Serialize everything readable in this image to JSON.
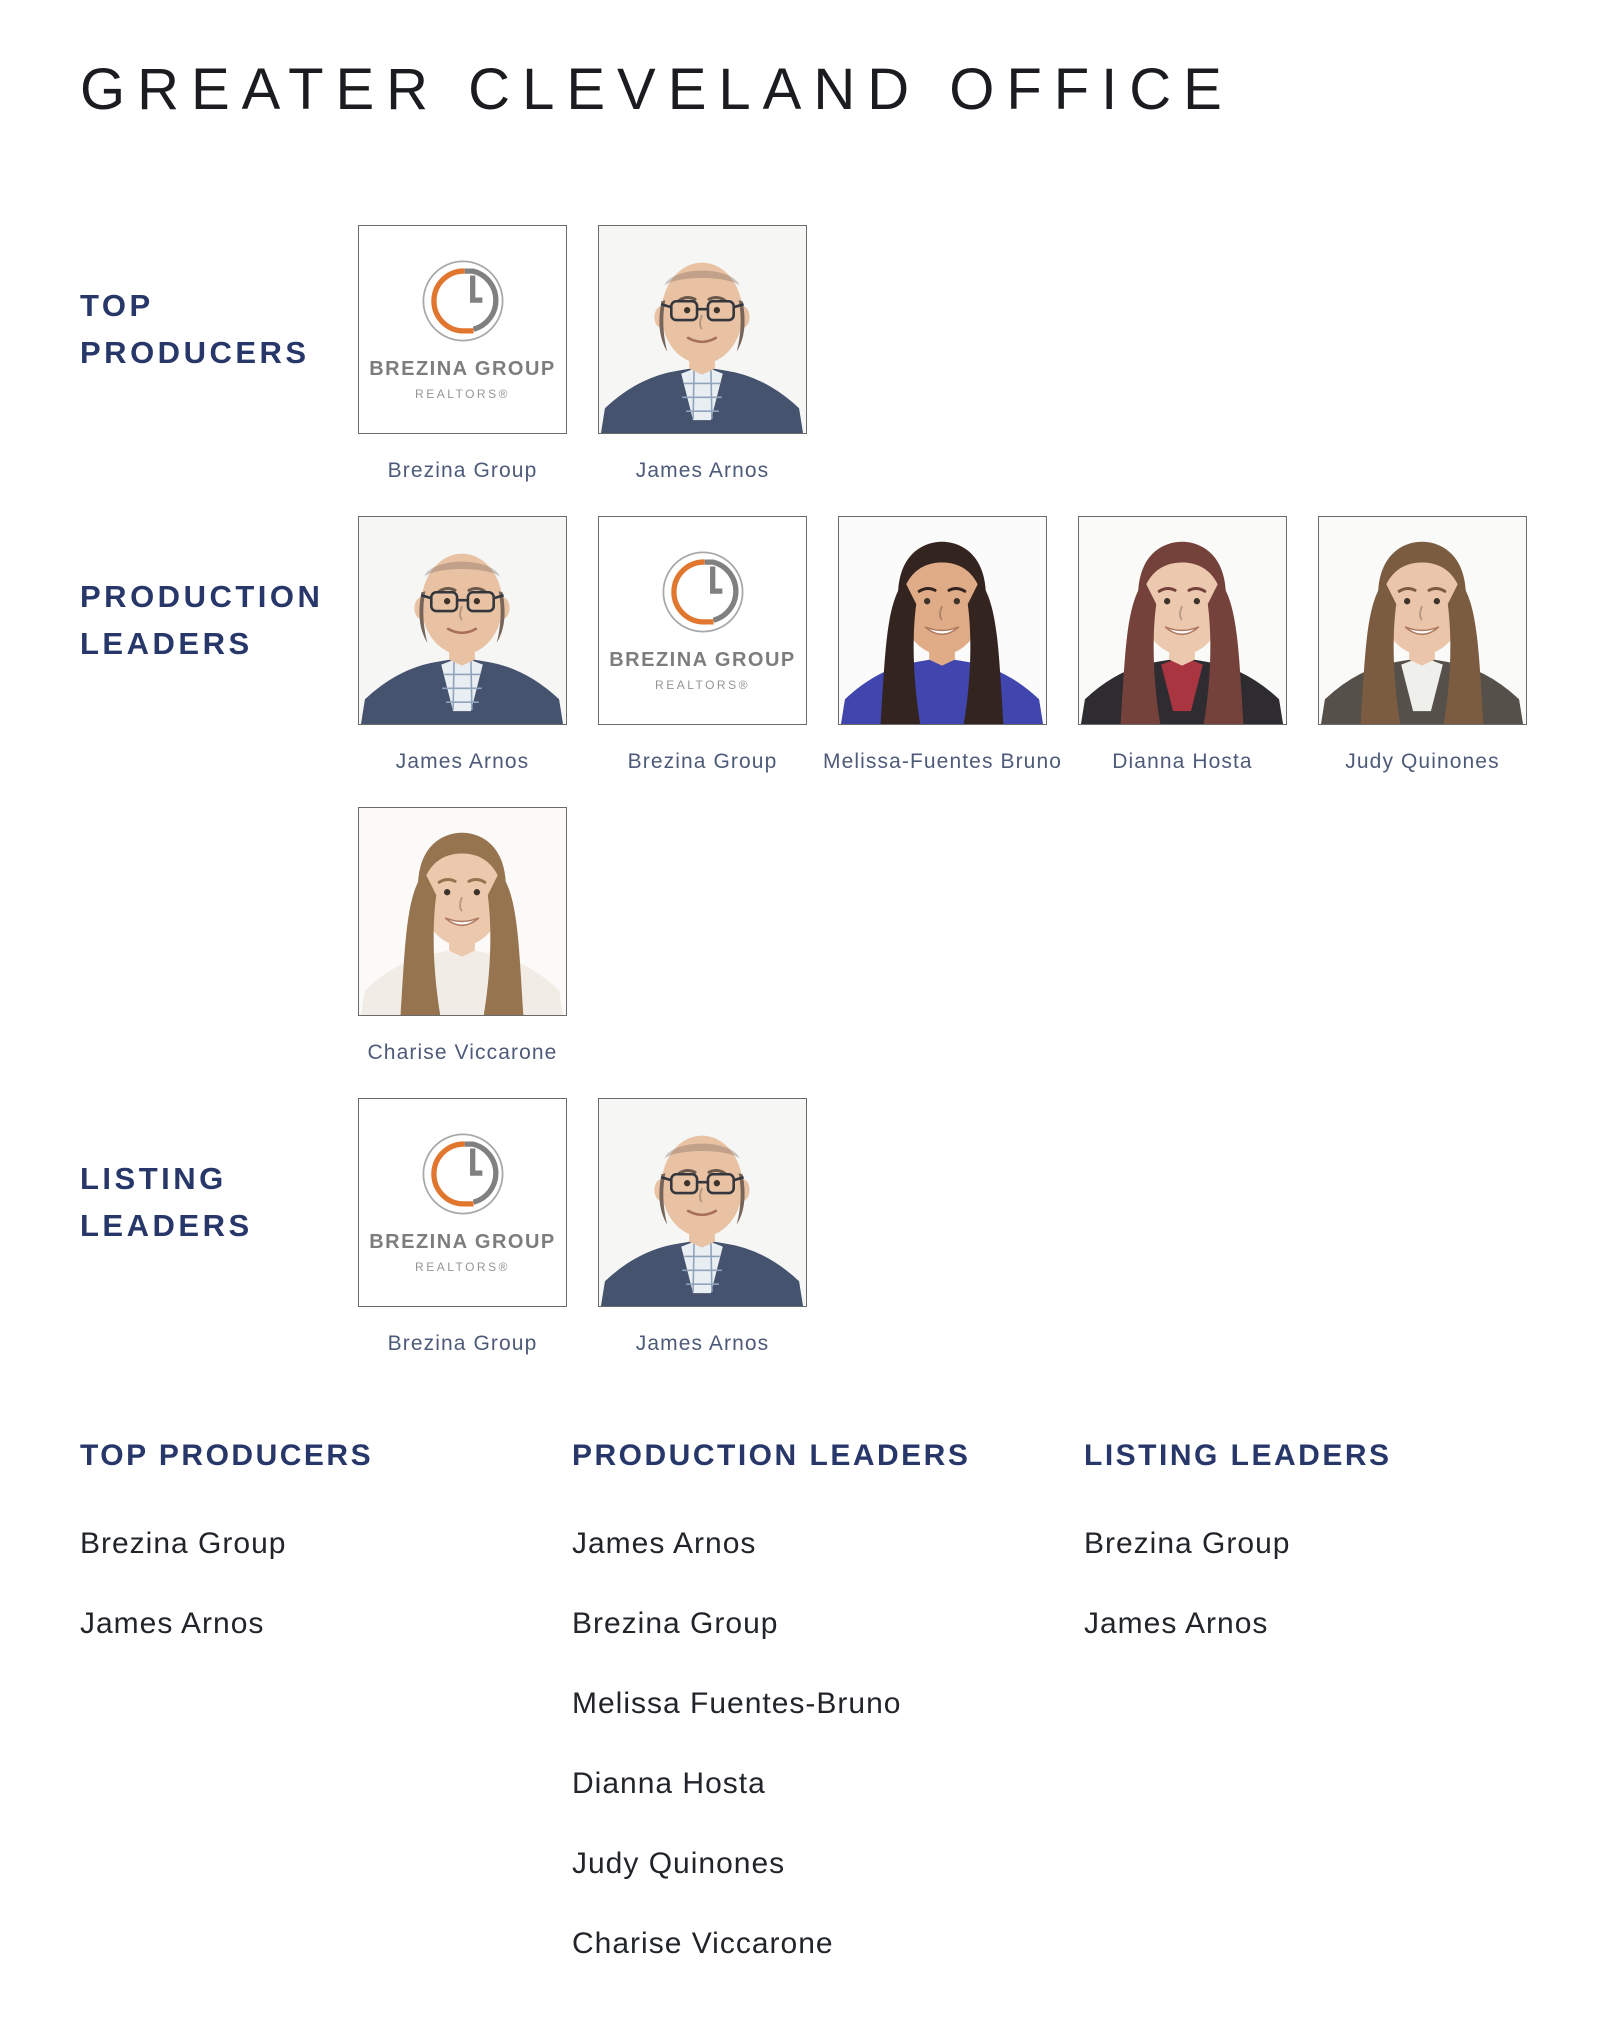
{
  "page": {
    "title": "GREATER CLEVELAND OFFICE"
  },
  "brand": {
    "logo_title": "BREZINA GROUP",
    "logo_subtitle": "REALTORS®"
  },
  "colors": {
    "navy": "#283769",
    "caption": "#4e5a79",
    "text": "#212529",
    "border": "#6a6a6a",
    "logo_orange": "#e1762f",
    "logo_gray": "#808080",
    "logo_text": "#7d7d7d",
    "logo_sub": "#949494",
    "logo_ring": "#a8a8a8"
  },
  "people": {
    "brezina-group": {
      "name": "Brezina Group",
      "type": "logo"
    },
    "james-arnos": {
      "name": "James Arnos",
      "type": "photo",
      "appearance": {
        "bg": "#f6f6f5",
        "skin": "#e9c2a3",
        "hair": "#77655a",
        "hair_style": "bald",
        "glasses": true,
        "smile": "soft",
        "top": "#45536e",
        "shirt": "#e9eef3",
        "shirt_check": "#8fa3bb"
      }
    },
    "melissa-fuentes-bruno": {
      "name": "Melissa Fuentes-Bruno",
      "type": "photo",
      "appearance": {
        "bg": "#fbfbfb",
        "skin": "#e0ab87",
        "hair": "#332420",
        "hair_style": "long",
        "glasses": false,
        "smile": "teeth",
        "top": "#4046ad"
      }
    },
    "dianna-hosta": {
      "name": "Dianna Hosta",
      "type": "photo",
      "appearance": {
        "bg": "#fafaf9",
        "skin": "#ecc9ae",
        "hair": "#74423a",
        "hair_style": "long",
        "glasses": false,
        "smile": "teeth",
        "top": "#2e2c31",
        "shirt": "#a83540"
      }
    },
    "judy-quinones": {
      "name": "Judy Quinones",
      "type": "photo",
      "appearance": {
        "bg": "#fafaf9",
        "skin": "#eac5a9",
        "hair": "#7c5c41",
        "hair_style": "long",
        "glasses": false,
        "smile": "teeth",
        "top": "#56504a",
        "shirt": "#efefec"
      }
    },
    "charise-viccarone": {
      "name": "Charise Viccarone",
      "type": "photo",
      "appearance": {
        "bg": "#fbfaf8",
        "skin": "#ecc8ac",
        "hair": "#96744f",
        "hair_style": "long",
        "glasses": false,
        "smile": "teeth",
        "top": "#f1ede6"
      }
    }
  },
  "sections": [
    {
      "id": "top-producers",
      "label_lines": [
        "TOP",
        "PRODUCERS"
      ],
      "rows": [
        [
          {
            "ref": "brezina-group",
            "caption": "Brezina Group"
          },
          {
            "ref": "james-arnos",
            "caption": "James Arnos"
          }
        ]
      ]
    },
    {
      "id": "production-leaders",
      "label_lines": [
        "PRODUCTION",
        "LEADERS"
      ],
      "rows": [
        [
          {
            "ref": "james-arnos",
            "caption": "James Arnos"
          },
          {
            "ref": "brezina-group",
            "caption": "Brezina Group"
          },
          {
            "ref": "melissa-fuentes-bruno",
            "caption": "Melissa-Fuentes Bruno"
          },
          {
            "ref": "dianna-hosta",
            "caption": "Dianna Hosta"
          },
          {
            "ref": "judy-quinones",
            "caption": "Judy Quinones"
          }
        ],
        [
          {
            "ref": "charise-viccarone",
            "caption": "Charise Viccarone"
          }
        ]
      ]
    },
    {
      "id": "listing-leaders",
      "label_lines": [
        "LISTING",
        "LEADERS"
      ],
      "rows": [
        [
          {
            "ref": "brezina-group",
            "caption": "Brezina Group"
          },
          {
            "ref": "james-arnos",
            "caption": "James Arnos"
          }
        ]
      ]
    }
  ],
  "summary": [
    {
      "heading": "TOP PRODUCERS",
      "items": [
        "Brezina Group",
        "James Arnos"
      ]
    },
    {
      "heading": "PRODUCTION LEADERS",
      "items": [
        "James Arnos",
        "Brezina Group",
        "Melissa Fuentes-Bruno",
        "Dianna Hosta",
        "Judy Quinones",
        "Charise Viccarone"
      ]
    },
    {
      "heading": "LISTING LEADERS",
      "items": [
        "Brezina Group",
        "James Arnos"
      ]
    }
  ]
}
